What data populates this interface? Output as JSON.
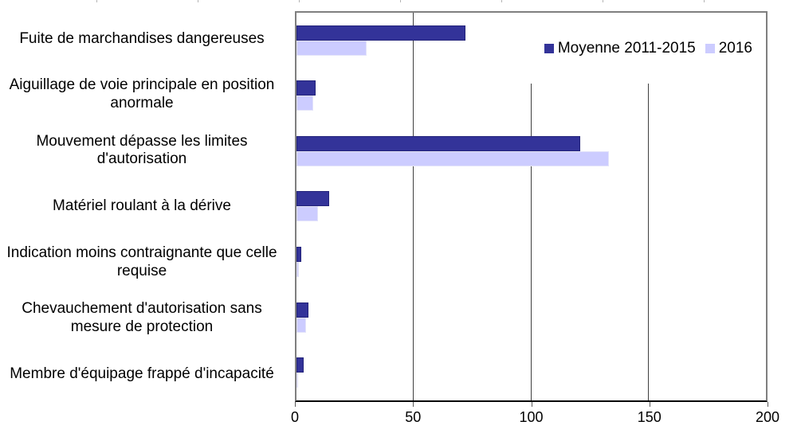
{
  "chart_data": {
    "type": "bar",
    "orientation": "horizontal",
    "title": "",
    "xlabel": "",
    "ylabel": "",
    "xlim": [
      0,
      200
    ],
    "x_ticks": [
      0,
      50,
      100,
      150,
      200
    ],
    "grid": true,
    "legend_position": "top-right",
    "categories": [
      "Fuite de marchandises dangereuses",
      "Aiguillage de voie principale en position anormale",
      "Mouvement dépasse les limites d'autorisation",
      "Matériel roulant à la dérive",
      "Indication moins contraignante que celle requise",
      "Chevauchement d'autorisation sans mesure de protection",
      "Membre d'équipage frappé d'incapacité"
    ],
    "series": [
      {
        "name": "Moyenne 2011-2015",
        "color": "#333399",
        "values": [
          72,
          8,
          121,
          14,
          2,
          5,
          3
        ]
      },
      {
        "name": "2016",
        "color": "#ccccff",
        "values": [
          30,
          7,
          133,
          9,
          1,
          4,
          0.5
        ]
      }
    ]
  },
  "legend": {
    "items": [
      {
        "label": "Moyenne 2011-2015",
        "color": "#333399"
      },
      {
        "label": "2016",
        "color": "#ccccff"
      }
    ]
  },
  "colors": {
    "series_dark": "#333399",
    "series_dark_border": "#23237a",
    "series_light": "#ccccff",
    "series_light_border": "#e3e3fa",
    "plot_frame": "#7f7f7f",
    "axis": "#000000",
    "gridline": "#3f3f3f"
  }
}
